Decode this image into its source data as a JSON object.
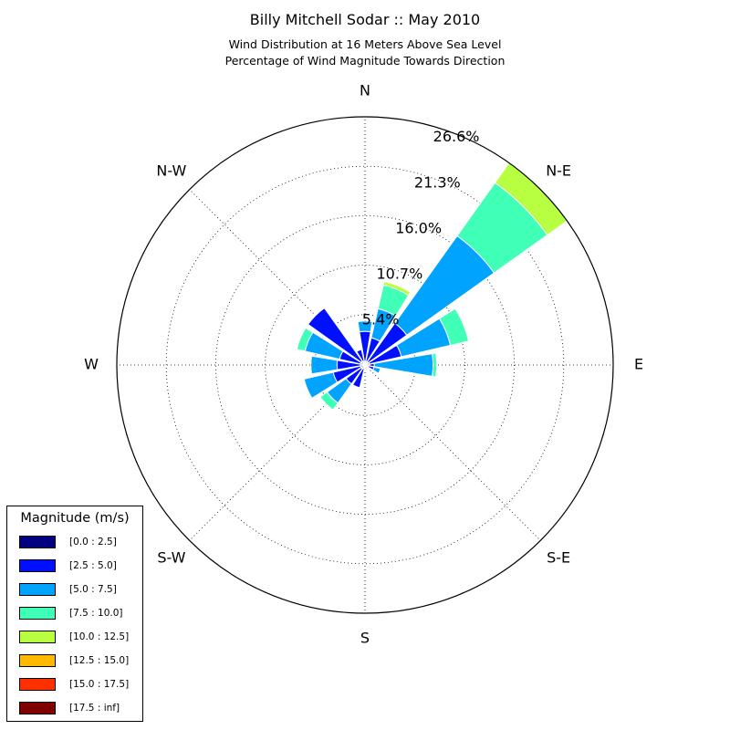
{
  "title": "Billy Mitchell Sodar :: May 2010",
  "subtitle_lines": [
    "Wind Distribution at 16 Meters Above Sea Level",
    "Percentage of Wind Magnitude Towards Direction"
  ],
  "chart_data": {
    "type": "windrose",
    "title": "Billy Mitchell Sodar :: May 2010",
    "direction_labels": [
      "N",
      "N-E",
      "E",
      "S-E",
      "S",
      "S-W",
      "W",
      "N-W"
    ],
    "radial_tick_labels": [
      "5.4%",
      "10.7%",
      "16.0%",
      "21.3%",
      "26.6%"
    ],
    "radial_max": 26.6,
    "legend": {
      "title": "Magnitude (m/s)",
      "placement": "bottom-left",
      "entries": [
        {
          "label": "[0.0 : 2.5]",
          "color": "#000080"
        },
        {
          "label": "[2.5 : 5.0]",
          "color": "#0010ff"
        },
        {
          "label": "[5.0 : 7.5]",
          "color": "#00a4ff"
        },
        {
          "label": "[7.5 : 10.0]",
          "color": "#40ffb7"
        },
        {
          "label": "[10.0 : 12.5]",
          "color": "#b7ff40"
        },
        {
          "label": "[12.5 : 15.0]",
          "color": "#ffb900"
        },
        {
          "label": "[15.0 : 17.5]",
          "color": "#ff3000"
        },
        {
          "label": "[17.5 : inf]",
          "color": "#800000"
        }
      ]
    },
    "grid": true,
    "sectors_deg_from_north": [
      0,
      22.5,
      45,
      67.5,
      90,
      112.5,
      135,
      157.5,
      180,
      202.5,
      225,
      247.5,
      270,
      292.5,
      315,
      337.5
    ],
    "cumulative_percent_by_sector": [
      [
        0.4,
        3.6,
        4.7,
        4.7,
        4.7,
        4.7,
        4.7,
        4.7
      ],
      [
        0.4,
        3.0,
        6.2,
        8.8,
        9.2,
        9.2,
        9.2,
        9.2
      ],
      [
        0.4,
        5.5,
        17.0,
        24.0,
        26.6,
        26.6,
        26.6,
        26.6
      ],
      [
        0.5,
        4.0,
        9.4,
        11.4,
        11.4,
        11.4,
        11.4,
        11.4
      ],
      [
        0.5,
        1.0,
        7.3,
        7.7,
        7.7,
        7.7,
        7.7,
        7.7
      ],
      [
        0.4,
        1.0,
        1.7,
        1.7,
        1.7,
        1.7,
        1.7,
        1.7
      ],
      [
        0.4,
        0.5,
        0.5,
        0.5,
        0.5,
        0.5,
        0.5,
        0.5
      ],
      [
        0.3,
        0.5,
        0.5,
        0.5,
        0.5,
        0.5,
        0.5,
        0.5
      ],
      [
        0.4,
        0.5,
        0.5,
        0.5,
        0.5,
        0.5,
        0.5,
        0.5
      ],
      [
        0.4,
        2.5,
        2.5,
        2.5,
        2.5,
        2.5,
        2.5,
        2.5
      ],
      [
        0.5,
        2.5,
        5.0,
        5.9,
        5.9,
        5.9,
        5.9,
        5.9
      ],
      [
        0.5,
        3.5,
        6.7,
        6.7,
        6.7,
        6.7,
        6.7,
        6.7
      ],
      [
        0.5,
        3.0,
        5.8,
        5.8,
        5.8,
        5.8,
        5.8,
        5.8
      ],
      [
        0.5,
        2.8,
        6.6,
        7.5,
        7.5,
        7.5,
        7.5,
        7.5
      ],
      [
        0.5,
        7.5,
        7.5,
        7.5,
        7.5,
        7.5,
        7.5,
        7.5
      ],
      [
        0.4,
        1.7,
        1.7,
        1.7,
        1.7,
        1.7,
        1.7,
        1.7
      ]
    ]
  }
}
